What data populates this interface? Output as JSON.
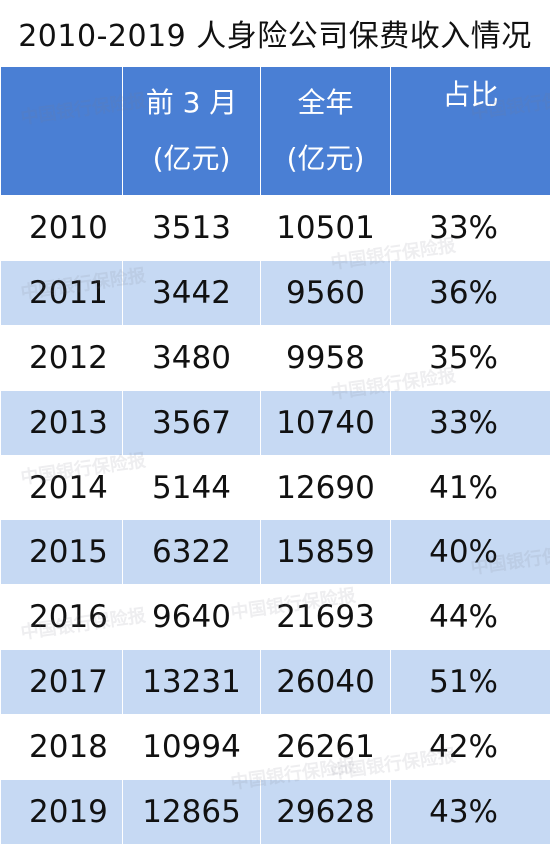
{
  "title": "2010-2019 人身险公司保费收入情况",
  "watermark": "中国银行保险报",
  "header": {
    "col1": "",
    "col2_line1": "前 3 月",
    "col2_line2": "(亿元)",
    "col3_line1": "全年",
    "col3_line2": "(亿元)",
    "col4": "占比"
  },
  "rows": [
    {
      "year": "2010",
      "q1": "3513",
      "full": "10501",
      "ratio": "33%"
    },
    {
      "year": "2011",
      "q1": "3442",
      "full": "9560",
      "ratio": "36%"
    },
    {
      "year": "2012",
      "q1": "3480",
      "full": "9958",
      "ratio": "35%"
    },
    {
      "year": "2013",
      "q1": "3567",
      "full": "10740",
      "ratio": "33%"
    },
    {
      "year": "2014",
      "q1": "5144",
      "full": "12690",
      "ratio": "41%"
    },
    {
      "year": "2015",
      "q1": "6322",
      "full": "15859",
      "ratio": "40%"
    },
    {
      "year": "2016",
      "q1": "9640",
      "full": "21693",
      "ratio": "44%"
    },
    {
      "year": "2017",
      "q1": "13231",
      "full": "26040",
      "ratio": "51%"
    },
    {
      "year": "2018",
      "q1": "10994",
      "full": "26261",
      "ratio": "42%"
    },
    {
      "year": "2019",
      "q1": "12865",
      "full": "29628",
      "ratio": "43%"
    }
  ],
  "colors": {
    "header_bg": "#4a7fd4",
    "stripe": "#c6d9f3"
  }
}
